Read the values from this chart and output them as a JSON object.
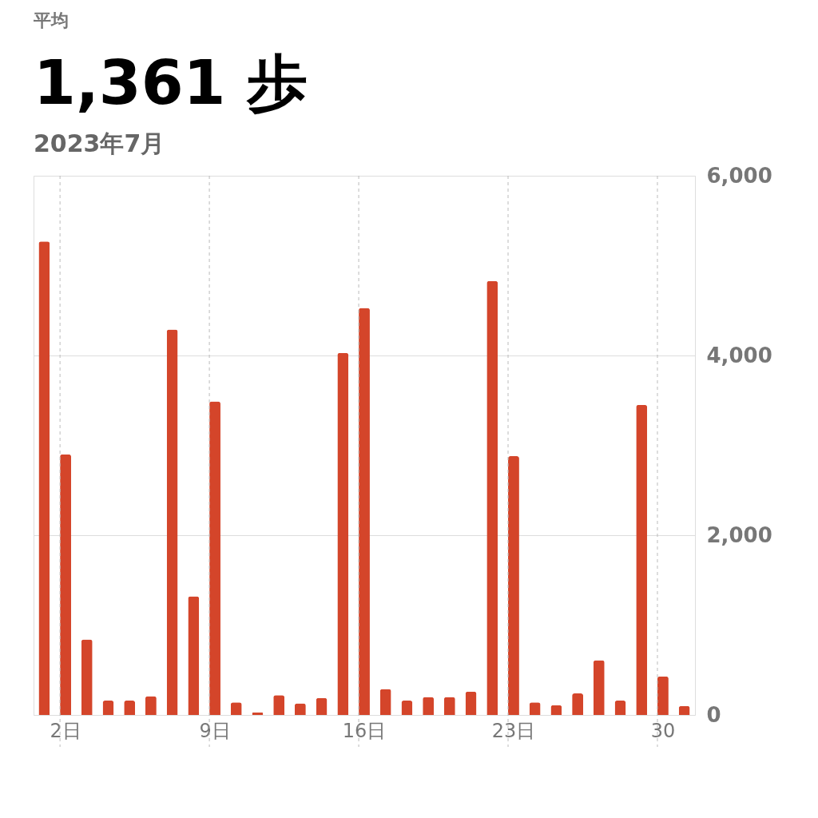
{
  "chart_data": {
    "type": "bar",
    "title": "1,361 歩",
    "subtitle": "2023年7月",
    "annotations": [
      "平均"
    ],
    "categories": [
      null,
      "2日",
      null,
      null,
      null,
      null,
      null,
      null,
      "9日",
      null,
      null,
      null,
      null,
      null,
      null,
      "16日",
      null,
      null,
      null,
      null,
      null,
      null,
      "23日",
      null,
      null,
      null,
      null,
      null,
      null,
      "30",
      null
    ],
    "values": [
      5270,
      2900,
      840,
      160,
      160,
      210,
      4290,
      1320,
      3490,
      140,
      30,
      220,
      130,
      190,
      4030,
      4530,
      290,
      160,
      200,
      200,
      260,
      4830,
      2880,
      140,
      110,
      240,
      610,
      160,
      3450,
      430,
      100
    ],
    "color": "#d4452a",
    "ylim": [
      0,
      6000
    ],
    "yticks": [
      0,
      {
        "value": 2000,
        "label": "2,000"
      },
      {
        "value": 4000,
        "label": "4,000"
      },
      {
        "value": 6000,
        "label": "6,000"
      }
    ],
    "grid": true
  }
}
